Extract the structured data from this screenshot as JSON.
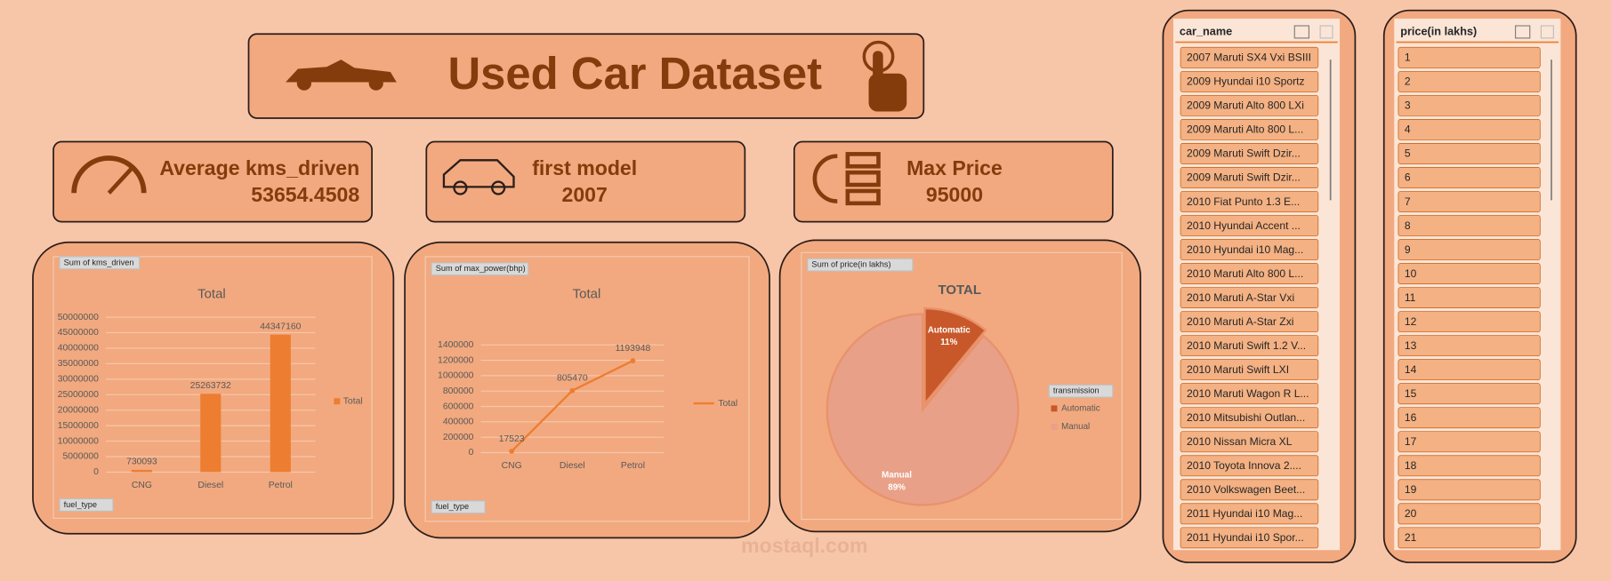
{
  "header": {
    "title": "Used Car Dataset"
  },
  "kpis": [
    {
      "label": "Average kms_driven",
      "value": "53654.4508"
    },
    {
      "label": "first model",
      "value": "2007"
    },
    {
      "label": "Max Price",
      "value": "95000"
    }
  ],
  "chart_data": [
    {
      "type": "bar",
      "field_label": "Sum of kms_driven",
      "title": "Total",
      "filter_label": "fuel_type",
      "categories": [
        "CNG",
        "Diesel",
        "Petrol"
      ],
      "series": [
        {
          "name": "Total",
          "color": "#ed7d31",
          "values": [
            730093,
            25263732,
            44347160
          ]
        }
      ],
      "ylim": [
        0,
        50000000
      ],
      "yticks": [
        0,
        5000000,
        10000000,
        15000000,
        20000000,
        25000000,
        30000000,
        35000000,
        40000000,
        45000000,
        50000000
      ],
      "grid": true
    },
    {
      "type": "line",
      "field_label": "Sum of max_power(bhp)",
      "title": "Total",
      "filter_label": "fuel_type",
      "categories": [
        "CNG",
        "Diesel",
        "Petrol"
      ],
      "series": [
        {
          "name": "Total",
          "color": "#ed7d31",
          "values": [
            17523,
            805470,
            1193948
          ]
        }
      ],
      "ylim": [
        0,
        1400000
      ],
      "yticks": [
        0,
        200000,
        400000,
        600000,
        800000,
        1000000,
        1200000,
        1400000
      ],
      "grid": true
    },
    {
      "type": "pie",
      "field_label": "Sum of price(in  lakhs)",
      "title": "TOTAL",
      "legend_title": "transmission",
      "categories": [
        "Automatic",
        "Manual"
      ],
      "values": [
        11,
        89
      ],
      "value_labels": [
        "11%",
        "89%"
      ],
      "colors": [
        "#c8582a",
        "#e9a088"
      ]
    }
  ],
  "slicers": [
    {
      "title": "car_name",
      "items": [
        "2007 Maruti SX4 Vxi BSIII",
        "2009 Hyundai i10 Sportz",
        "2009 Maruti Alto 800 LXi",
        "2009 Maruti Alto 800 L...",
        "2009 Maruti Swift Dzir...",
        "2009 Maruti Swift Dzir...",
        "2010 Fiat Punto 1.3 E...",
        "2010 Hyundai Accent ...",
        "2010 Hyundai i10 Mag...",
        "2010 Maruti Alto 800 L...",
        "2010 Maruti A-Star Vxi",
        "2010 Maruti A-Star Zxi",
        "2010 Maruti Swift 1.2 V...",
        "2010 Maruti Swift LXI",
        "2010 Maruti Wagon R L...",
        "2010 Mitsubishi Outlan...",
        "2010 Nissan Micra XL",
        "2010 Toyota Innova 2....",
        "2010 Volkswagen Beet...",
        "2011 Hyundai i10 Mag...",
        "2011 Hyundai i10 Spor..."
      ]
    },
    {
      "title": "price(in lakhs)",
      "items": [
        "1",
        "2",
        "3",
        "4",
        "5",
        "6",
        "7",
        "8",
        "9",
        "10",
        "11",
        "12",
        "13",
        "14",
        "15",
        "16",
        "17",
        "18",
        "19",
        "20",
        "21"
      ]
    }
  ],
  "watermark": "mostaql.com"
}
